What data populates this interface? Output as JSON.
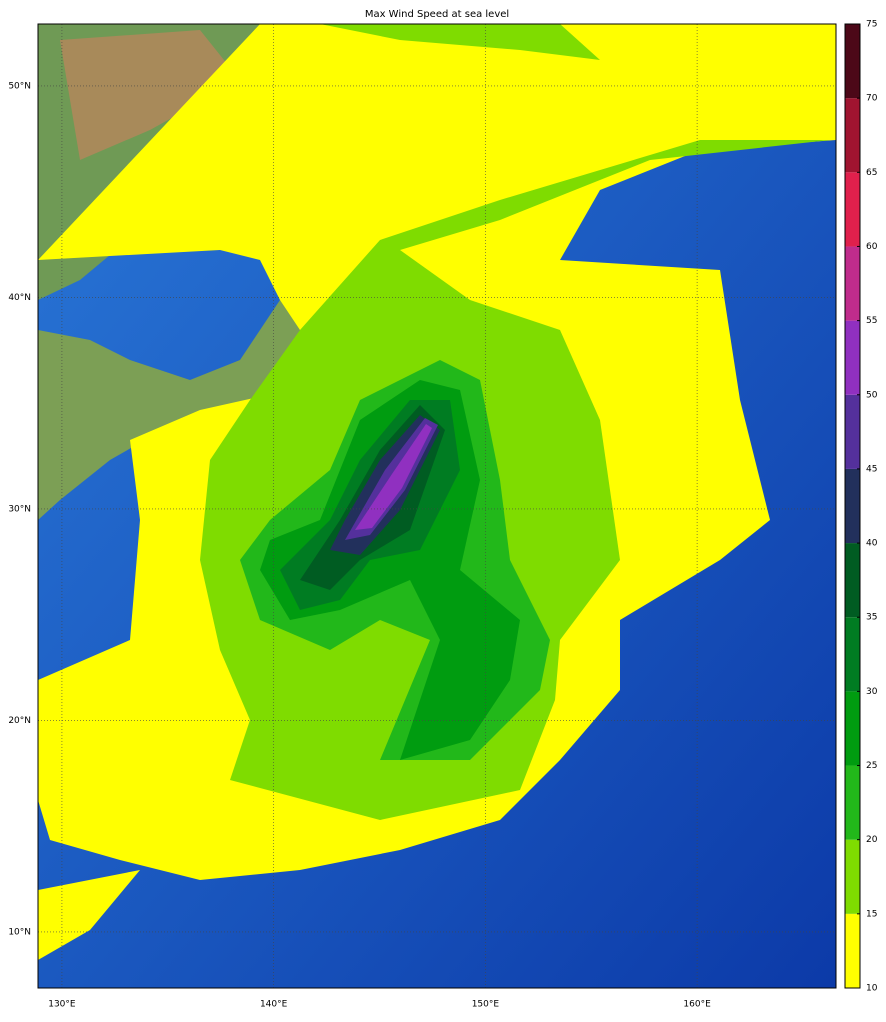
{
  "map": {
    "title": "Max Wind Speed at sea level",
    "xlim": [
      128.87,
      166.56
    ],
    "ylim": [
      7.35,
      52.93
    ],
    "xticks": [
      {
        "value": 130,
        "label": "130°E"
      },
      {
        "value": 140,
        "label": "140°E"
      },
      {
        "value": 150,
        "label": "150°E"
      },
      {
        "value": 160,
        "label": "160°E"
      }
    ],
    "yticks": [
      {
        "value": 10,
        "label": "10°N"
      },
      {
        "value": 20,
        "label": "20°N"
      },
      {
        "value": 30,
        "label": "30°N"
      },
      {
        "value": 40,
        "label": "40°N"
      },
      {
        "value": 50,
        "label": "50°N"
      }
    ],
    "grid": true,
    "colorbar": {
      "levels": [
        10,
        15,
        20,
        25,
        30,
        35,
        40,
        45,
        50,
        55,
        60,
        65,
        70,
        75
      ],
      "colors": [
        "#ffff00",
        "#7fdc00",
        "#22b81a",
        "#009c10",
        "#007c22",
        "#005c22",
        "#22305c",
        "#54309c",
        "#9030c0",
        "#c02c8c",
        "#e0204c",
        "#a01430",
        "#4c0818"
      ]
    }
  }
}
